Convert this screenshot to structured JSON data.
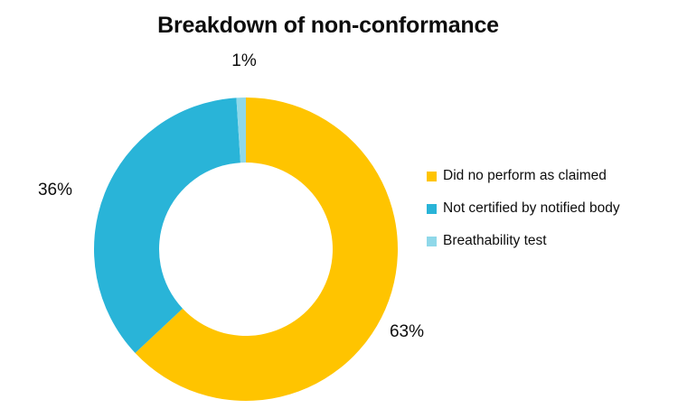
{
  "page": {
    "background": "#FFFFFF",
    "text_color": "#0d0d0d"
  },
  "chart_data": {
    "type": "pie",
    "subtype": "donut",
    "title": "Breakdown of non-conformance",
    "slices": [
      {
        "label": "Did no perform as claimed",
        "value": 63,
        "display": "63%",
        "color": "#FFC400"
      },
      {
        "label": "Not certified by notified body",
        "value": 36,
        "display": "36%",
        "color": "#29B4D8"
      },
      {
        "label": "Breathability test",
        "value": 1,
        "display": "1%",
        "color": "#8FD8E9"
      }
    ],
    "start_angle_deg": 0,
    "direction": "clockwise",
    "hole_ratio": 0.57,
    "legend_position": "right",
    "data_labels": "outside-end percentage"
  }
}
